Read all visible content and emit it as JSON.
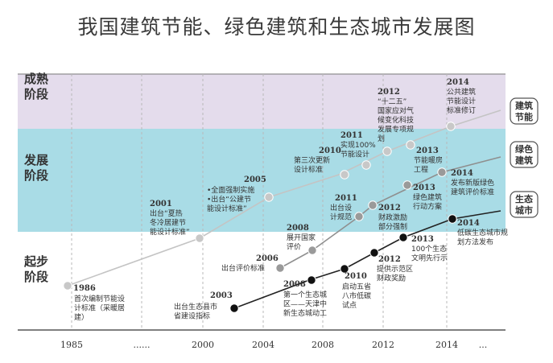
{
  "title": "我国建筑节能、绿色建筑和生态城市发展图",
  "stages": [
    {
      "line1": "成熟",
      "line2": "阶段",
      "color": "#e4dcec"
    },
    {
      "line1": "发展",
      "line2": "阶段",
      "color": "#a9dce6"
    },
    {
      "line1": "起步",
      "line2": "阶段",
      "color": "#ffffff"
    }
  ],
  "axis_ticks": [
    "1985",
    "......",
    "2000",
    "2004",
    "2008",
    "2012",
    "2014",
    "..."
  ],
  "tracks": [
    {
      "name_line1": "建筑",
      "name_line2": "节能",
      "color": "#c8c8c8",
      "line_color": "#c4c4c4"
    },
    {
      "name_line1": "绿色",
      "name_line2": "建筑",
      "color": "#9a9a9a",
      "line_color": "#8f8f8f"
    },
    {
      "name_line1": "生态",
      "name_line2": "城市",
      "color": "#111111",
      "line_color": "#222222"
    }
  ],
  "events": [
    {
      "track": "建筑节能",
      "year": "1986",
      "lines": [
        "首次编制节能设",
        "计标准（采暖居",
        "建）"
      ]
    },
    {
      "track": "建筑节能",
      "year": "2001",
      "lines": [
        "出台“夏热",
        "冬冷居建节",
        "能设计标准”"
      ]
    },
    {
      "track": "建筑节能",
      "year": "2005",
      "lines": [
        "•全面强制实施",
        "•出台“公建节",
        "能设计标准”"
      ]
    },
    {
      "track": "建筑节能",
      "year": "2010",
      "lines": [
        "第三次更新",
        "设计标准"
      ]
    },
    {
      "track": "建筑节能",
      "year": "2011",
      "lines": [
        "实现100%",
        "节能设计"
      ]
    },
    {
      "track": "建筑节能",
      "year": "2012",
      "lines": [
        "“十二五”",
        "国家应对气",
        "候变化科技",
        "发展专项规",
        "划"
      ]
    },
    {
      "track": "建筑节能",
      "year": "2013",
      "lines": [
        "节能暖房",
        "工程"
      ]
    },
    {
      "track": "建筑节能",
      "year": "2014",
      "lines": [
        "公共建筑",
        "节能设计",
        "标准修订"
      ]
    },
    {
      "track": "绿色建筑",
      "year": "2006",
      "lines": [
        "出台评价标准"
      ]
    },
    {
      "track": "绿色建筑",
      "year": "2008",
      "lines": [
        "展开国家",
        "评价"
      ]
    },
    {
      "track": "绿色建筑",
      "year": "2011",
      "lines": [
        "出台设",
        "计规范"
      ]
    },
    {
      "track": "绿色建筑",
      "year": "2012",
      "lines": [
        "财政激励",
        "部分强制"
      ]
    },
    {
      "track": "绿色建筑",
      "year": "2013",
      "lines": [
        "绿色建筑",
        "行动方案"
      ]
    },
    {
      "track": "绿色建筑",
      "year": "2014",
      "lines": [
        "发布新版绿色",
        "建筑评价标准"
      ]
    },
    {
      "track": "生态城市",
      "year": "2003",
      "lines": [
        "出台生态县市",
        "省建设指标"
      ]
    },
    {
      "track": "生态城市",
      "year": "2008",
      "lines": [
        "第一个生态城",
        "区——天津中",
        "新生态城动工"
      ]
    },
    {
      "track": "生态城市",
      "year": "2010",
      "lines": [
        "启动五省",
        "八市低碳",
        "试点"
      ]
    },
    {
      "track": "生态城市",
      "year": "2012",
      "lines": [
        "提供示范区",
        "财政奖励"
      ]
    },
    {
      "track": "生态城市",
      "year": "2013",
      "lines": [
        "100个生态",
        "文明先行示"
      ]
    },
    {
      "track": "生态城市",
      "year": "2014",
      "lines": [
        "低碳生态城市规",
        "划方法发布"
      ]
    }
  ]
}
